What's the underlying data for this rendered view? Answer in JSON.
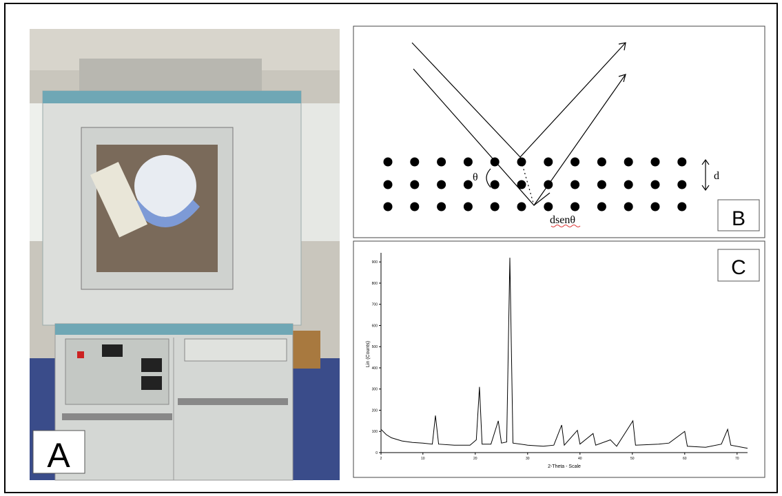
{
  "figure": {
    "panels": {
      "a": {
        "label": "A"
      },
      "b": {
        "label": "B",
        "angle": "θ",
        "spacing": "d",
        "path_difference": "dsenθ"
      },
      "c": {
        "label": "C"
      }
    }
  },
  "chart_data": {
    "type": "line",
    "xlabel": "2-Theta - Scale",
    "ylabel": "Lin (Counts)",
    "color": "#000000",
    "x": [
      2,
      3,
      4,
      6,
      8,
      10,
      11.8,
      12.4,
      13,
      16,
      19,
      20.2,
      20.8,
      21.3,
      23,
      24.4,
      25,
      26,
      26.6,
      27.2,
      30,
      33,
      35,
      36.5,
      37,
      39.5,
      40,
      42.5,
      43,
      45.8,
      47,
      50.1,
      50.6,
      55,
      57,
      60,
      60.5,
      64,
      67,
      68.2,
      68.8,
      72
    ],
    "values": [
      110,
      85,
      70,
      55,
      48,
      45,
      40,
      175,
      40,
      35,
      35,
      60,
      310,
      40,
      40,
      150,
      45,
      50,
      920,
      45,
      35,
      30,
      35,
      130,
      35,
      105,
      40,
      90,
      35,
      60,
      30,
      150,
      35,
      40,
      45,
      100,
      30,
      25,
      40,
      110,
      35,
      20
    ],
    "xlim": [
      2,
      72
    ],
    "ylim": [
      0,
      930
    ],
    "xticks": [
      2,
      10,
      20,
      30,
      40,
      50,
      60,
      70
    ],
    "yticks": [
      0,
      100,
      200,
      300,
      400,
      500,
      600,
      700,
      800,
      900
    ]
  }
}
